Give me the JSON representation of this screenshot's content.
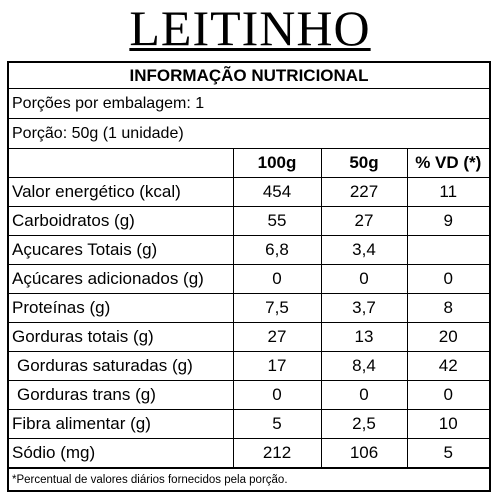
{
  "brand": "LEITINHO",
  "label": {
    "title": "INFORMAÇÃO NUTRICIONAL",
    "servings_per_package": "Porções por embalagem: 1",
    "serving_size": "Porção: 50g (1 unidade)",
    "columns": [
      "",
      "100g",
      "50g",
      "% VD (*)"
    ],
    "rows": [
      {
        "name": "Valor energético (kcal)",
        "v100": "454",
        "v50": "227",
        "vd": "11"
      },
      {
        "name": "Carboidratos (g)",
        "v100": "55",
        "v50": "27",
        "vd": "9"
      },
      {
        "name": "Açucares Totais (g)",
        "v100": "6,8",
        "v50": "3,4",
        "vd": ""
      },
      {
        "name": "Açúcares adicionados (g)",
        "v100": "0",
        "v50": "0",
        "vd": "0"
      },
      {
        "name": "Proteínas (g)",
        "v100": "7,5",
        "v50": "3,7",
        "vd": "8"
      },
      {
        "name": "Gorduras totais (g)",
        "v100": "27",
        "v50": "13",
        "vd": "20"
      },
      {
        "name": "Gorduras saturadas (g)",
        "v100": "17",
        "v50": "8,4",
        "vd": "42"
      },
      {
        "name": "Gorduras trans (g)",
        "v100": "0",
        "v50": "0",
        "vd": "0"
      },
      {
        "name": "Fibra alimentar (g)",
        "v100": "5",
        "v50": "2,5",
        "vd": "10"
      },
      {
        "name": "Sódio (mg)",
        "v100": "212",
        "v50": "106",
        "vd": "5"
      }
    ],
    "footnote": "*Percentual de valores diários fornecidos pela porção."
  }
}
